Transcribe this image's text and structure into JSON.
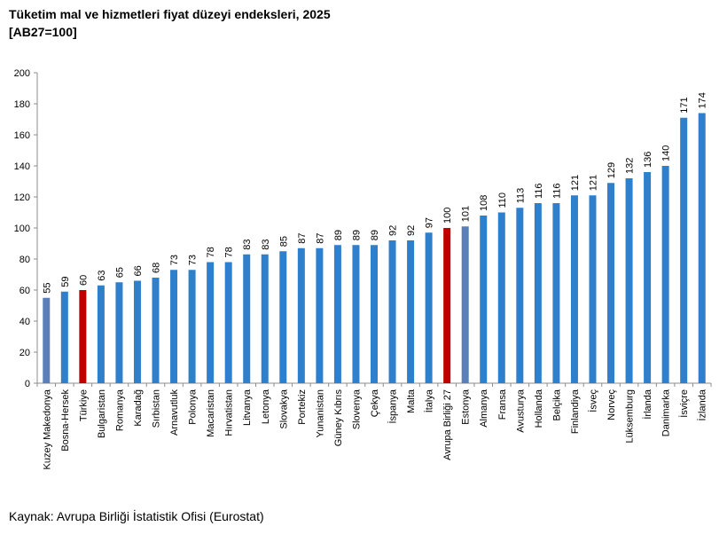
{
  "header": {
    "title": "Tüketim mal ve hizmetleri fiyat düzeyi endeksleri, 2025",
    "subtitle": "[AB27=100]"
  },
  "footer": {
    "source": "Kaynak: Avrupa Birliği İstatistik Ofisi (Eurostat)"
  },
  "colors": {
    "default": "#2e7fcc",
    "highlight": "#c00000",
    "alt": "#5b7fb8"
  },
  "chart_data": {
    "type": "bar",
    "title": "Tüketim mal ve hizmetleri fiyat düzeyi endeksleri, 2025",
    "subtitle": "[AB27=100]",
    "xlabel": "",
    "ylabel": "",
    "ylim": [
      0,
      200
    ],
    "yticks": [
      0,
      20,
      40,
      60,
      80,
      100,
      120,
      140,
      160,
      180,
      200
    ],
    "grid": false,
    "categories": [
      "Kuzey Makedonya",
      "Bosna-Hersek",
      "Türkiye",
      "Bulgaristan",
      "Romanya",
      "Karadağ",
      "Sırbistan",
      "Arnavutluk",
      "Polonya",
      "Macaristan",
      "Hırvatistan",
      "Litvanya",
      "Letonya",
      "Slovakya",
      "Portekiz",
      "Yunanistan",
      "Güney Kıbrıs",
      "Slovenya",
      "Çekya",
      "İspanya",
      "Malta",
      "İtalya",
      "Avrupa Birliği 27",
      "Estonya",
      "Almanya",
      "Fransa",
      "Avusturya",
      "Hollanda",
      "Belçika",
      "Finlandiya",
      "İsveç",
      "Norveç",
      "Lüksemburg",
      "İrlanda",
      "Danimarka",
      "İsviçre",
      "İzlanda"
    ],
    "values": [
      55,
      59,
      60,
      63,
      65,
      66,
      68,
      73,
      73,
      78,
      78,
      83,
      83,
      85,
      87,
      87,
      89,
      89,
      89,
      92,
      92,
      97,
      100,
      101,
      108,
      110,
      113,
      116,
      116,
      121,
      121,
      129,
      132,
      136,
      140,
      171,
      174
    ],
    "bar_colors": [
      "alt",
      "default",
      "highlight",
      "default",
      "default",
      "default",
      "default",
      "default",
      "default",
      "default",
      "default",
      "default",
      "default",
      "default",
      "default",
      "default",
      "default",
      "default",
      "default",
      "default",
      "default",
      "default",
      "highlight",
      "alt",
      "default",
      "default",
      "default",
      "default",
      "default",
      "default",
      "default",
      "default",
      "default",
      "default",
      "default",
      "default",
      "default"
    ]
  }
}
